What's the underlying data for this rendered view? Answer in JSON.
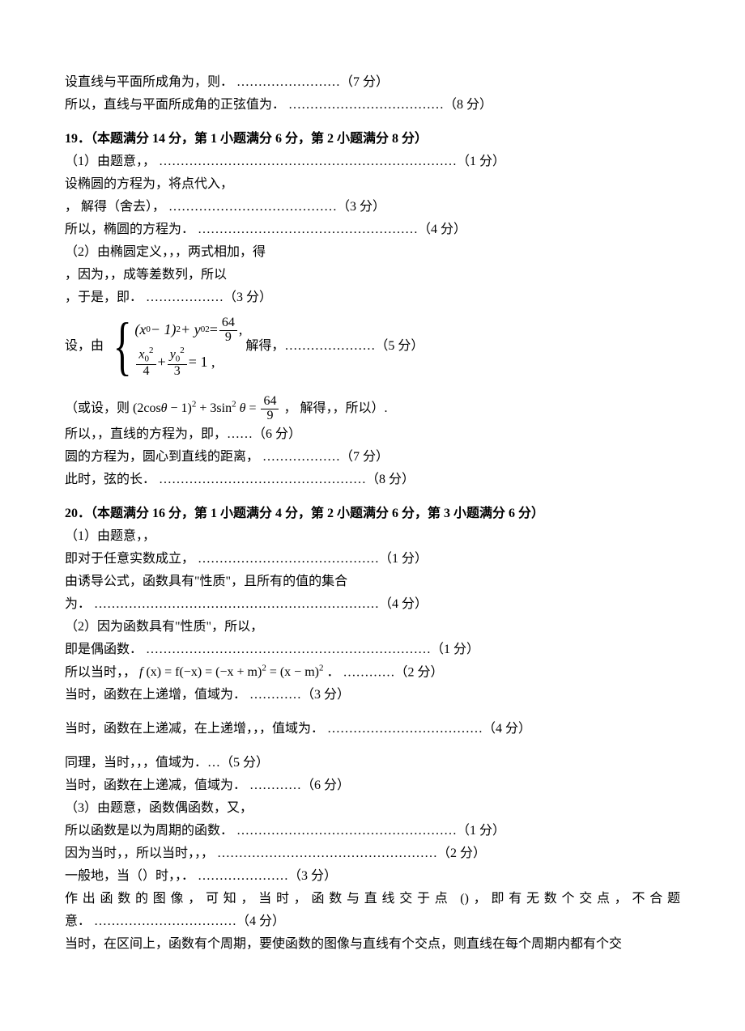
{
  "text_color": "#000000",
  "background_color": "#ffffff",
  "body_fontsize_pt": 12,
  "bold_weight": 700,
  "pre": {
    "l1": "设直线与平面所成角为，则．  ……………………（7 分）",
    "l2": "所以，直线与平面所成角的正弦值为．    ………………………………（8 分）"
  },
  "q19": {
    "head": "19．（本题满分 14 分，第 1 小题满分 6 分，第 2 小题满分 8 分）",
    "l1": "（1）由题意，，   ……………………………………………………………（1 分）",
    "l2": "设椭圆的方程为，将点代入，",
    "l3": "，  解得（舍去），    …………………………………（3 分）",
    "l4": "所以，椭圆的方程为．   ……………………………………………（4 分）",
    "l5": "（2）由椭圆定义，，，两式相加，得",
    "l6": "，因为，，成等差数列，所以",
    "l7": "，于是，即．   ………………（3 分）",
    "system_prefix": "设，由",
    "system_row1_lhs_a": "(x",
    "system_row1_lhs_b": " − 1)",
    "system_row1_lhs_c": " + y",
    "system_row1_lhs_eq": " = ",
    "system_row1_rhs_num": "64",
    "system_row1_rhs_den": "9",
    "system_row1_tail": " ,",
    "system_row2_f1_num": "x",
    "system_row2_f1_den": "4",
    "system_row2_plus": " + ",
    "system_row2_f2_num": "y",
    "system_row2_f2_den": "3",
    "system_row2_eq": " = 1    ,",
    "system_suffix": "  解得，…………………（5 分）",
    "alt_prefix": "（或设，则 ",
    "alt_math_a": "(2cos",
    "alt_math_b": " − 1)",
    "alt_math_c": " + 3sin",
    "alt_math_eq": " = ",
    "alt_rhs_num": "64",
    "alt_rhs_den": "9",
    "alt_suffix": "，  解得，，所以）.",
    "l8": "所以，，直线的方程为，即，……（6 分）",
    "l9": "圆的方程为，圆心到直线的距离，    ………………（7 分）",
    "l10": "此时，弦的长．  …………………………………………（8 分）"
  },
  "q20": {
    "head": "20．（本题满分 16 分，第 1 小题满分 4 分，第 2 小题满分 6 分，第 3 小题满分 6 分）",
    "l1": "（1）由题意，，",
    "l2": "即对于任意实数成立，   ……………………………………（1 分）",
    "l3": "由诱导公式，函数具有\"性质\"，且所有的值的集合",
    "l4": "为．    …………………………………………………………（4 分）",
    "l5": "（2）因为函数具有\"性质\"，所以，",
    "l6": "即是偶函数．    …………………………………………………………（1 分）",
    "l7_prefix": "所以当时，， ",
    "l7_math_a": "f",
    "l7_math_b": "(x) = f(−x) = (−x + m)",
    "l7_math_c": " = (x − m)",
    "l7_suffix": "．  …………（2 分）",
    "l8": "当时，函数在上递增，值域为．  …………（3 分）",
    "l9": "当时，函数在上递减，在上递增，，，值域为．    ………………………………（4 分）",
    "l10": "同理，当时，，，值域为．…（5 分）",
    "l11": "当时，函数在上递减，值域为．    …………（6 分）",
    "l12": "（3）由题意，函数偶函数，又，",
    "l13": "所以函数是以为周期的函数．    ……………………………………………（1 分）",
    "l14": "因为当时，，所以当时，，，   ……………………………………………（2 分）",
    "l15": "一般地，当（）时，，．   …………………（3 分）",
    "l16a": "作出函数的图像，可知，当时，函数与直线交于点 ()，即有无数个交点，不合题",
    "l16b": "意．    ……………………………（4 分）",
    "l17": "当时，在区间上，函数有个周期，要使函数的图像与直线有个交点，则直线在每个周期内都有个交"
  }
}
